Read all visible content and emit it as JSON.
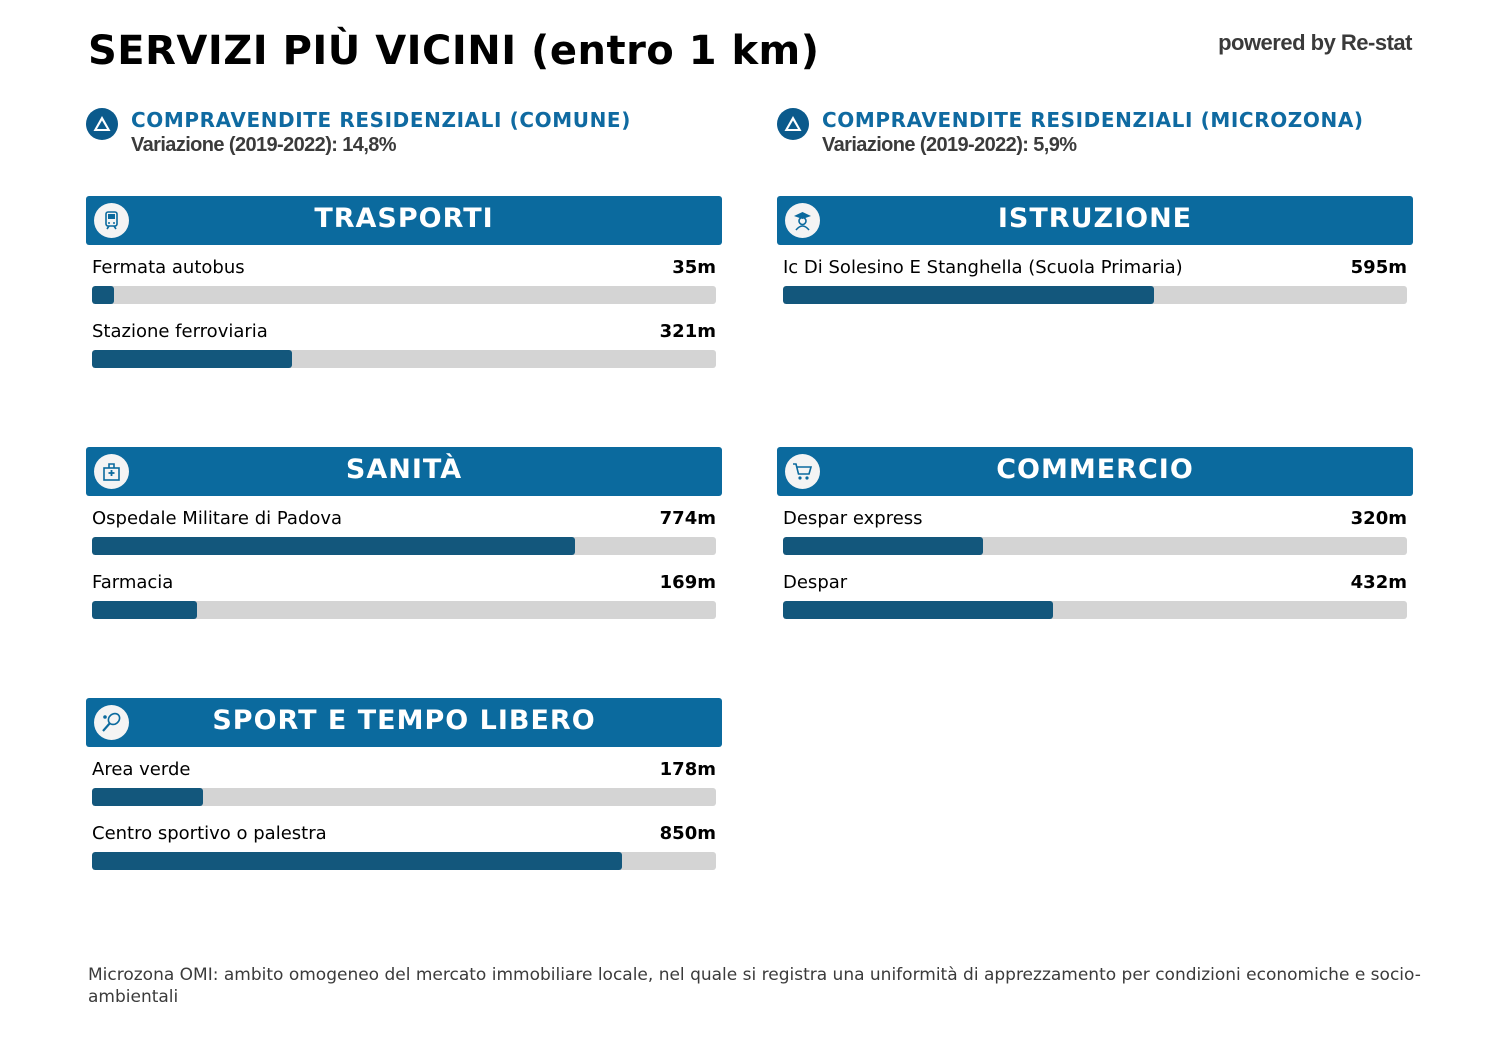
{
  "title": "SERVIZI PIÙ VICINI (entro 1 km)",
  "powered_by": "powered by Re-stat",
  "kpis": [
    {
      "label": "COMPRAVENDITE RESIDENZIALI (COMUNE)",
      "sub": "Variazione (2019-2022): 14,8%",
      "icon": "triangle-up-icon"
    },
    {
      "label": "COMPRAVENDITE RESIDENZIALI (MICROZONA)",
      "sub": "Variazione (2019-2022): 5,9%",
      "icon": "triangle-up-icon"
    }
  ],
  "chart_data": {
    "type": "bar",
    "orientation": "horizontal",
    "unit": "m",
    "max_distance": 1000,
    "bar_color": "#13577c",
    "track_color": "#d4d4d4",
    "header_color": "#0b6a9e",
    "groups": [
      {
        "title": "TRASPORTI",
        "icon": "train-icon",
        "items": [
          {
            "name": "Fermata autobus",
            "value": 35,
            "label": "35m"
          },
          {
            "name": "Stazione ferroviaria",
            "value": 321,
            "label": "321m"
          }
        ]
      },
      {
        "title": "ISTRUZIONE",
        "icon": "student-icon",
        "items": [
          {
            "name": "Ic Di Solesino E Stanghella (Scuola Primaria)",
            "value": 595,
            "label": "595m"
          }
        ]
      },
      {
        "title": "SANITÀ",
        "icon": "hospital-icon",
        "items": [
          {
            "name": "Ospedale Militare di Padova",
            "value": 774,
            "label": "774m"
          },
          {
            "name": "Farmacia",
            "value": 169,
            "label": "169m"
          }
        ]
      },
      {
        "title": "COMMERCIO",
        "icon": "shopping-cart-icon",
        "items": [
          {
            "name": "Despar express",
            "value": 320,
            "label": "320m"
          },
          {
            "name": "Despar",
            "value": 432,
            "label": "432m"
          }
        ]
      },
      {
        "title": "SPORT E TEMPO LIBERO",
        "icon": "tennis-racket-icon",
        "items": [
          {
            "name": "Area verde",
            "value": 178,
            "label": "178m"
          },
          {
            "name": "Centro sportivo o palestra",
            "value": 850,
            "label": "850m"
          }
        ]
      }
    ]
  },
  "footer": "Microzona OMI: ambito omogeneo del mercato immobiliare locale, nel quale si registra una uniformità di apprezzamento per condizioni economiche e socio-ambientali"
}
